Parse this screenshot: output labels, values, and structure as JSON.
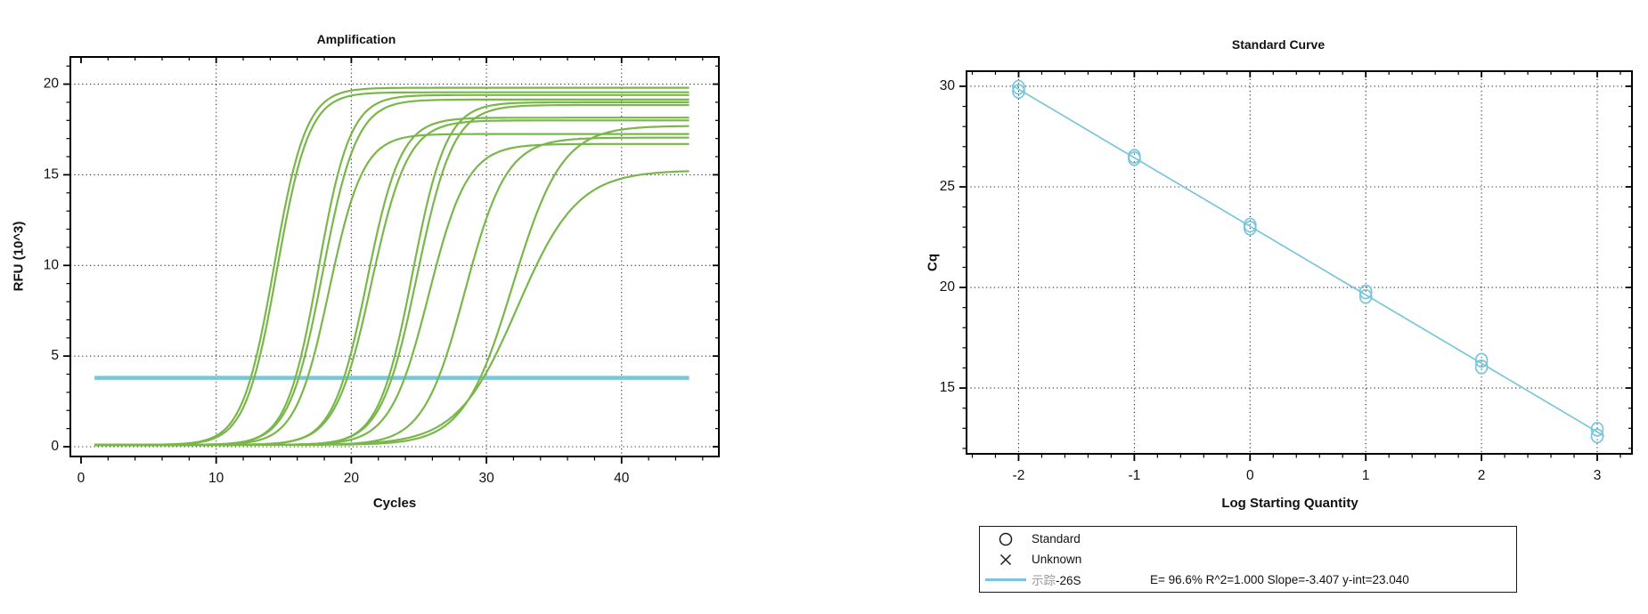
{
  "chart_data": [
    {
      "type": "line",
      "id": "amplification",
      "title": "Amplification",
      "xlabel": "Cycles",
      "ylabel": "RFU (10^3)",
      "xlim": [
        -0.79,
        47.2
      ],
      "ylim": [
        -0.54,
        21.5
      ],
      "x_major_ticks": [
        0,
        10,
        20,
        30,
        40
      ],
      "x_minor_step": 2,
      "y_major_ticks": [
        0,
        5,
        10,
        15,
        20
      ],
      "y_minor_step": 1,
      "x_gridlines": [
        10,
        20,
        30,
        40
      ],
      "y_gridlines": [
        0,
        5,
        10,
        15,
        20
      ],
      "grid": true,
      "curve_color": "#7ab74a",
      "threshold_color": "#79c6dc",
      "threshold_rfu": 3.8,
      "cycle_range": [
        1,
        45
      ],
      "curves": [
        {
          "cq": 12.6,
          "plateau": 19.7,
          "k": 0.85
        },
        {
          "cq": 12.85,
          "plateau": 19.45,
          "k": 0.85
        },
        {
          "cq": 15.9,
          "plateau": 19.3,
          "k": 0.85
        },
        {
          "cq": 16.15,
          "plateau": 19.05,
          "k": 0.8
        },
        {
          "cq": 16.8,
          "plateau": 17.15,
          "k": 0.8
        },
        {
          "cq": 19.5,
          "plateau": 18.05,
          "k": 0.8
        },
        {
          "cq": 19.75,
          "plateau": 17.9,
          "k": 0.75
        },
        {
          "cq": 22.8,
          "plateau": 18.9,
          "k": 0.8
        },
        {
          "cq": 23.05,
          "plateau": 18.75,
          "k": 0.75
        },
        {
          "cq": 24.0,
          "plateau": 16.6,
          "k": 0.7
        },
        {
          "cq": 26.5,
          "plateau": 16.95,
          "k": 0.65
        },
        {
          "cq": 29.6,
          "plateau": 17.6,
          "k": 0.55
        },
        {
          "cq": 29.85,
          "plateau": 15.15,
          "k": 0.45
        }
      ]
    },
    {
      "type": "scatter",
      "id": "standard_curve",
      "title": "Standard Curve",
      "xlabel": "Log Starting Quantity",
      "ylabel": "Cq",
      "xlim": [
        -2.45,
        3.3
      ],
      "ylim": [
        11.73,
        30.75
      ],
      "x_major_ticks": [
        -2,
        -1,
        0,
        1,
        2,
        3
      ],
      "x_minor_step": 0.2,
      "y_major_ticks": [
        15,
        20,
        25,
        30
      ],
      "y_minor_step": 1,
      "x_gridlines": [
        -2,
        -1,
        0,
        1,
        2,
        3
      ],
      "y_gridlines": [
        15,
        20,
        25,
        30
      ],
      "grid": true,
      "color": "#79c6dc",
      "points": [
        [
          -2,
          29.75
        ],
        [
          -2,
          29.95
        ],
        [
          -1,
          26.4
        ],
        [
          -1,
          26.52
        ],
        [
          0,
          22.95
        ],
        [
          0,
          23.1
        ],
        [
          1,
          19.55
        ],
        [
          1,
          19.78
        ],
        [
          2,
          16.05
        ],
        [
          2,
          16.38
        ],
        [
          3,
          12.62
        ],
        [
          3,
          12.95
        ]
      ],
      "fit_line": {
        "slope": -3.407,
        "y_intercept": 23.04,
        "x_start": -2.06,
        "x_end": 3.06
      },
      "efficiency": "96.6%",
      "r_squared": "1.000"
    }
  ],
  "legend": {
    "items": [
      {
        "symbol": "circle",
        "label": "Standard"
      },
      {
        "symbol": "x",
        "label": "Unknown"
      },
      {
        "symbol": "line",
        "label_cn": "示踪",
        "label_suffix": "-26S",
        "stats": "E= 96.6% R^2=1.000 Slope=-3.407 y-int=23.040"
      }
    ]
  }
}
